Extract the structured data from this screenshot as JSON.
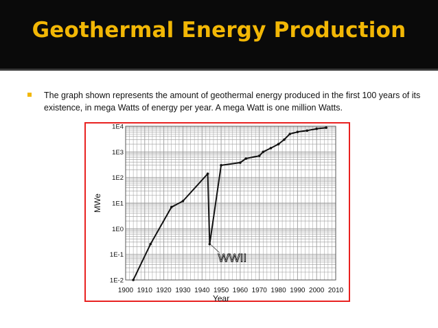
{
  "slide": {
    "title": "Geothermal Energy Production",
    "bullet": "The graph shown  represents the amount of geothermal energy produced in the first 100 years of its existence, in mega Watts of energy per year. A mega Watt is one million Watts."
  },
  "colors": {
    "title_bar": "#0a0a0a",
    "title_text": "#f2b705",
    "bullet_marker": "#f2b705",
    "frame_border": "#e8201f",
    "line": "#111111",
    "grid": "#9a9a9a"
  },
  "chart_data": {
    "type": "line",
    "title": "",
    "xlabel": "Year",
    "ylabel": "MWe",
    "yscale": "log",
    "xlim": [
      1900,
      2010
    ],
    "ylim": [
      0.01,
      10000
    ],
    "grid": true,
    "x_ticks": [
      "1900",
      "1910",
      "1920",
      "1930",
      "1940",
      "1950",
      "1960",
      "1970",
      "1980",
      "1990",
      "2000",
      "2010"
    ],
    "y_ticks": [
      "1E-2",
      "1E-1",
      "1E0",
      "1E1",
      "1E2",
      "1E3",
      "1E4"
    ],
    "series": [
      {
        "x": [
          1904,
          1913,
          1924,
          1930,
          1943,
          1944,
          1950,
          1960,
          1963,
          1970,
          1972,
          1976,
          1980,
          1983,
          1986,
          1990,
          1995,
          2000,
          2005
        ],
        "y": [
          0.01,
          0.25,
          7,
          12,
          140,
          0.25,
          300,
          380,
          550,
          700,
          1000,
          1400,
          2000,
          3000,
          5000,
          6000,
          6800,
          8000,
          8800
        ]
      }
    ],
    "annotations": [
      {
        "text": "WWII",
        "x": 1944,
        "y": 0.25
      }
    ]
  }
}
